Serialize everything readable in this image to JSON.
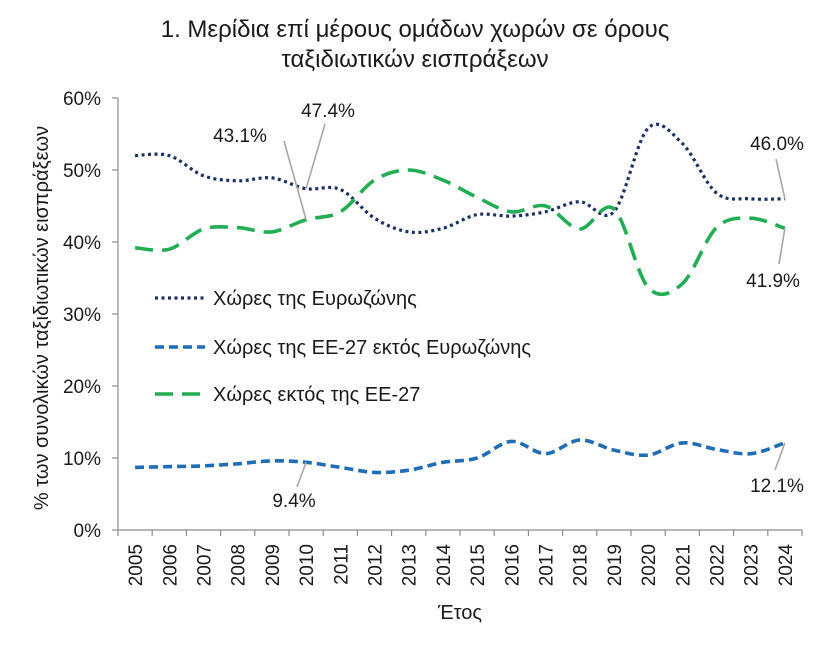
{
  "chart_data": {
    "type": "line",
    "title_lines": [
      "1. Μερίδια επί μέρους ομάδων χωρών σε όρους",
      "ταξιδιωτικών εισπράξεων"
    ],
    "xlabel": "Έτος",
    "ylabel": "% των συνολικών ταξιδιωτικών εισπράξεων",
    "categories": [
      "2005",
      "2006",
      "2007",
      "2008",
      "2009",
      "2010",
      "2011",
      "2012",
      "2013",
      "2014",
      "2015",
      "2016",
      "2017",
      "2018",
      "2019",
      "2020",
      "2021",
      "2022",
      "2023",
      "2024"
    ],
    "ylim": [
      0,
      60
    ],
    "yticks": [
      0,
      10,
      20,
      30,
      40,
      50,
      60
    ],
    "ytick_labels": [
      "0%",
      "10%",
      "20%",
      "30%",
      "40%",
      "50%",
      "60%"
    ],
    "grid": false,
    "legend_position": "inside-left",
    "series": [
      {
        "name": "Χώρες της Ευρωζώνης",
        "color": "#1c2f63",
        "line_style": "dotted",
        "values": [
          52.0,
          52.0,
          49.2,
          48.5,
          48.9,
          47.4,
          47.3,
          43.3,
          41.4,
          41.9,
          43.8,
          43.6,
          44.2,
          45.6,
          44.2,
          55.8,
          53.7,
          46.8,
          46.0,
          46.0
        ]
      },
      {
        "name": "Χώρες της ΕΕ-27 εκτός Ευρωζώνης",
        "color": "#1f6db5",
        "line_style": "dashed",
        "values": [
          8.7,
          8.8,
          8.9,
          9.2,
          9.6,
          9.4,
          8.7,
          8.0,
          8.3,
          9.4,
          10.0,
          12.3,
          10.6,
          12.5,
          11.1,
          10.4,
          12.1,
          11.2,
          10.6,
          12.1
        ]
      },
      {
        "name": "Χώρες εκτός της ΕΕ-27",
        "color": "#22ad55",
        "line_style": "long-dashed",
        "values": [
          39.2,
          39.0,
          41.8,
          42.0,
          41.4,
          43.1,
          44.2,
          48.6,
          50.0,
          48.6,
          46.2,
          44.2,
          45.0,
          41.8,
          44.6,
          33.7,
          34.2,
          42.0,
          43.3,
          41.9
        ]
      }
    ],
    "annotations": [
      {
        "text": "43.1%",
        "series": "Χώρες εκτός της ΕΕ-27",
        "x": "2010"
      },
      {
        "text": "47.4%",
        "series": "Χώρες της Ευρωζώνης",
        "x": "2010"
      },
      {
        "text": "46.0%",
        "series": "Χώρες της Ευρωζώνης",
        "x": "2024"
      },
      {
        "text": "41.9%",
        "series": "Χώρες εκτός της ΕΕ-27",
        "x": "2024"
      },
      {
        "text": "9.4%",
        "series": "Χώρες της ΕΕ-27 εκτός Ευρωζώνης",
        "x": "2010"
      },
      {
        "text": "12.1%",
        "series": "Χώρες της ΕΕ-27 εκτός Ευρωζώνης",
        "x": "2024"
      }
    ]
  }
}
